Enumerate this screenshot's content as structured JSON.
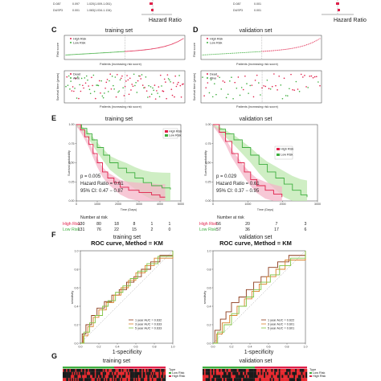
{
  "panels": {
    "C": {
      "letter": "C"
    },
    "D": {
      "letter": "D"
    },
    "E": {
      "letter": "E"
    },
    "F": {
      "letter": "F"
    },
    "G": {
      "letter": "G"
    }
  },
  "top_strip": {
    "left_rows": [
      {
        "label": "D.087",
        "n": "0.097",
        "ci": "1.020(1.009-1.051)"
      },
      {
        "label": "DUSP3",
        "n": "0.001",
        "ci": "1.083(1.034-1.134)"
      }
    ],
    "right_rows": [
      {
        "label": "D.087",
        "n": "0.001"
      },
      {
        "label": "DUSP3",
        "n": "0.001"
      }
    ],
    "hr_label": "Hazard Ratio"
  },
  "risk_plots": {
    "training": {
      "title": "training set",
      "n": 261,
      "cutoff_index": 130
    },
    "validation": {
      "title": "validation set",
      "n": 113,
      "cutoff_index": 56
    },
    "legend": [
      "High Risk",
      "Low Risk"
    ],
    "scatter_legend": [
      "Dead",
      "Alive"
    ],
    "xlabel": "Patients (increasing risk socre)",
    "ylabel_top": "Risk score",
    "ylabel_bottom": "Survival time (years)"
  },
  "km": {
    "training": {
      "title": "training set",
      "p": "p = 0.005",
      "hr": "Hazard Ratio = 0.61",
      "ci": "95% CI: 0.47 − 0.87",
      "risk_high": [
        "130",
        "80",
        "18",
        "8",
        "1",
        "1"
      ],
      "risk_low": [
        "131",
        "76",
        "22",
        "15",
        "2",
        "0"
      ],
      "xticks": [
        "0",
        "1000",
        "2000",
        "3000",
        "4000",
        "5000"
      ]
    },
    "validation": {
      "title": "validation set",
      "p": "p = 0.029",
      "hr": "Hazard Ratio = 0.61",
      "ci": "95% CI: 0.37 − 0.95",
      "risk_high": [
        "56",
        "20",
        "7",
        "3"
      ],
      "risk_low": [
        "57",
        "36",
        "17",
        "6"
      ],
      "xticks": [
        "0",
        "1000",
        "2000",
        "3000"
      ]
    },
    "xlabel": "Time (Days)",
    "ylabel": "Survival probability",
    "risk_title": "Number at risk",
    "strata": [
      "High Risk",
      "Low Risk"
    ],
    "legend": [
      "High Risk",
      "Low Risk"
    ],
    "yticks": [
      "0.00",
      "0.25",
      "0.50",
      "0.75",
      "1.00"
    ]
  },
  "roc": {
    "training": {
      "subtitle": "training set",
      "title": "ROC curve, Method = KM",
      "legend": [
        "1 year AUC = 0.632",
        "3 year AUC = 0.633",
        "5 year AUC = 0.633"
      ]
    },
    "validation": {
      "subtitle": "validation set",
      "title": "ROC curve, Method = KM",
      "legend": [
        "1 year AUC = 0.622",
        "3 year AUC = 0.601",
        "5 year AUC = 0.601"
      ]
    },
    "xlabel": "1-specificity",
    "ylabel": "sensitivity",
    "ticks": [
      "0.0",
      "0.2",
      "0.4",
      "0.6",
      "0.8",
      "1.0"
    ]
  },
  "heatmap": {
    "training_title": "training set",
    "validation_title": "validation set",
    "legend": [
      "Type",
      "Low Risk",
      "High Risk"
    ]
  },
  "colors": {
    "high": "#e0204a",
    "low": "#3fae3f",
    "high_fill": "#f4b6c8",
    "low_fill": "#bfe8b0",
    "roc1": "#8b3a1a",
    "roc3": "#d9822b",
    "roc5": "#7fc241"
  },
  "chart_data": [
    {
      "type": "scatter",
      "title": "training set",
      "series": [
        {
          "name": "High Risk"
        },
        {
          "name": "Low Risk"
        }
      ]
    },
    {
      "type": "scatter",
      "title": "validation set",
      "series": [
        {
          "name": "High Risk"
        },
        {
          "name": "Low Risk"
        }
      ]
    },
    {
      "type": "line",
      "title": "training set",
      "xlabel": "Time (Days)",
      "ylabel": "Survival probability",
      "ylim": [
        0,
        1
      ],
      "series": [
        {
          "name": "High Risk"
        },
        {
          "name": "Low Risk"
        }
      ]
    },
    {
      "type": "line",
      "title": "validation set",
      "xlabel": "Time (Days)",
      "ylabel": "Survival probability",
      "ylim": [
        0,
        1
      ],
      "series": [
        {
          "name": "High Risk"
        },
        {
          "name": "Low Risk"
        }
      ]
    },
    {
      "type": "line",
      "title": "ROC curve, Method = KM",
      "xlabel": "1-specificity",
      "ylabel": "sensitivity",
      "xlim": [
        0,
        1
      ],
      "ylim": [
        0,
        1
      ]
    },
    {
      "type": "line",
      "title": "ROC curve, Method = KM",
      "xlabel": "1-specificity",
      "ylabel": "sensitivity",
      "xlim": [
        0,
        1
      ],
      "ylim": [
        0,
        1
      ]
    }
  ]
}
